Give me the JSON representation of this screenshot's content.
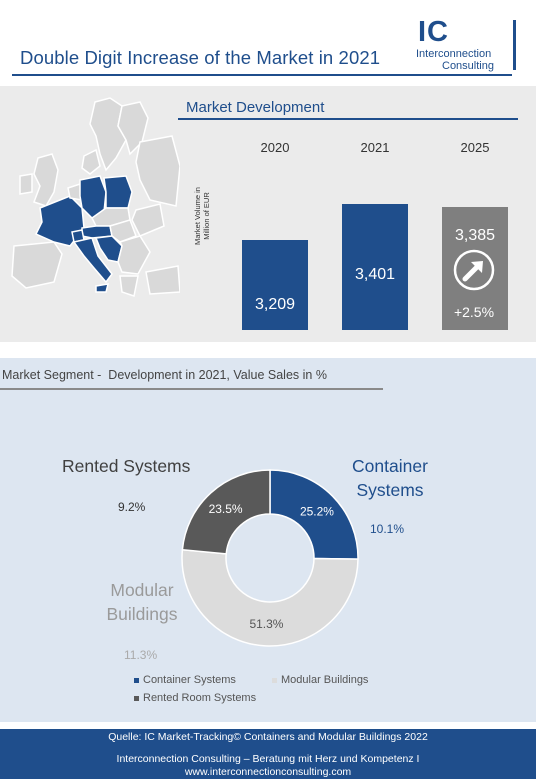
{
  "header": {
    "title": "Double  Digit Increase of the Market in 2021",
    "logo": {
      "initials": "IC",
      "line1": "Interconnection",
      "line2": "Consulting"
    }
  },
  "market_development": {
    "title": "Market Development",
    "ylabel": "Market Volume in Million of EUR",
    "growth_label": "+2.5%",
    "arrow_icon": "up-right-arrow-icon"
  },
  "segment": {
    "title": "Market Segment -  Development in 2021, Value Sales in %",
    "categories": [
      {
        "name": "Container Systems",
        "share": "25.2%",
        "growth": "10.1%",
        "color": "#1f4e8c"
      },
      {
        "name": "Modular Buildings",
        "share": "51.3%",
        "growth": "11.3%",
        "color": "#dcdcdc"
      },
      {
        "name": "Rented Systems",
        "share": "23.5%",
        "growth": "9.2%",
        "color": "#595959"
      }
    ],
    "legend": [
      "Container Systems",
      "Modular Buildings",
      "Rented Room Systems"
    ]
  },
  "footer": {
    "source": "Quelle: IC Market-Tracking© Containers and Modular Buildings 2022",
    "company": "Interconnection Consulting – Beratung mit Herz und Kompetenz  I",
    "url": "www.interconnectionconsulting.com"
  },
  "chart_data": [
    {
      "type": "bar",
      "categories": [
        "2020",
        "2021",
        "2025"
      ],
      "values": [
        3209,
        3401,
        3385
      ],
      "value_labels": [
        "3,209",
        "3,401",
        "3,385"
      ],
      "colors": [
        "#1f4e8c",
        "#1f4e8c",
        "#7f7f7f"
      ],
      "ylabel": "Market Volume in Million of EUR",
      "ylim": [
        3000,
        3500
      ],
      "annotations": [
        "+2.5%"
      ],
      "grid": false
    },
    {
      "type": "pie",
      "labels": [
        "Container Systems",
        "Modular Buildings",
        "Rented Systems"
      ],
      "values": [
        25.2,
        51.3,
        23.5
      ],
      "growth": [
        "10.1%",
        "11.3%",
        "9.2%"
      ],
      "colors": [
        "#1f4e8c",
        "#dcdcdc",
        "#595959"
      ],
      "donut": true,
      "legend_placement": "bottom"
    }
  ]
}
